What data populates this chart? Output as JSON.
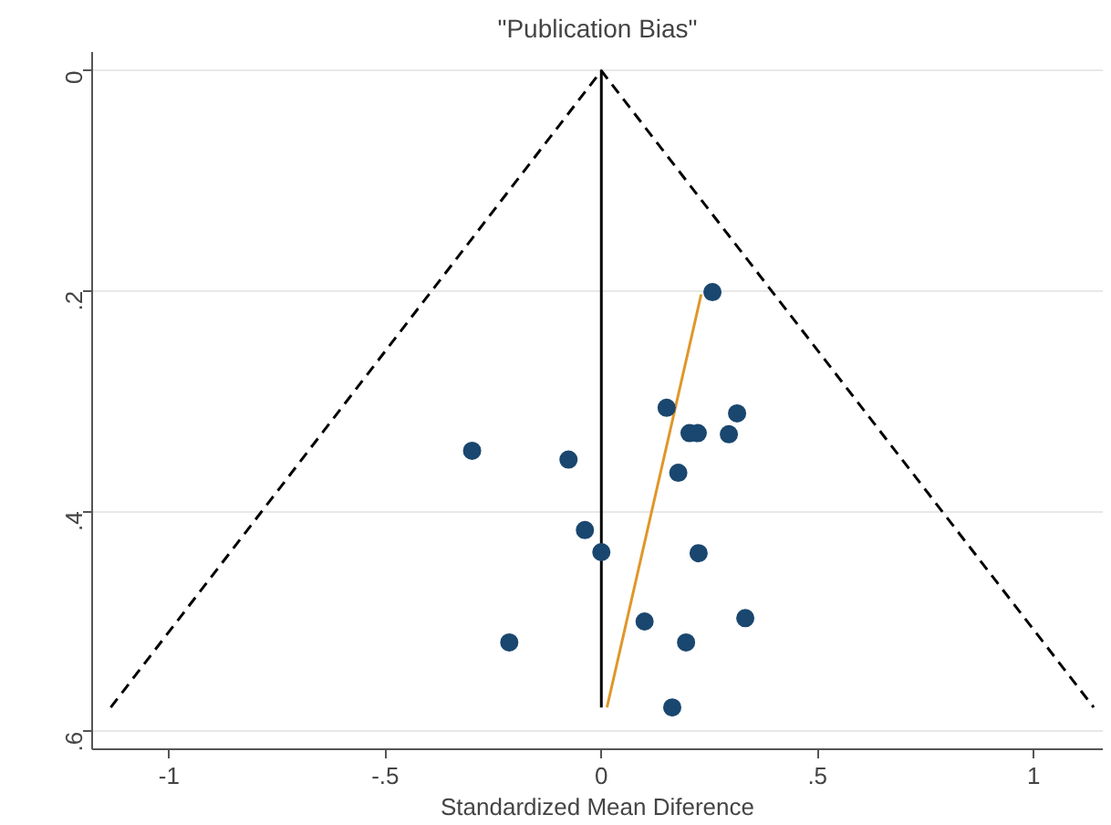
{
  "chart_data": {
    "type": "scatter",
    "title": "\"Publication Bias\"",
    "xlabel": "Standardized Mean Diference",
    "xlim": [
      -1.178,
      1.16
    ],
    "ylim": [
      0.616,
      -0.017
    ],
    "xticks": [
      {
        "value": -1,
        "label": "-1"
      },
      {
        "value": -0.5,
        "label": "-.5"
      },
      {
        "value": 0,
        "label": "0"
      },
      {
        "value": 0.5,
        "label": ".5"
      },
      {
        "value": 1,
        "label": "1"
      }
    ],
    "yticks": [
      {
        "value": 0,
        "label": "0"
      },
      {
        "value": 0.2,
        "label": ".2"
      },
      {
        "value": 0.4,
        "label": ".4"
      },
      {
        "value": 0.6,
        "label": ".6"
      }
    ],
    "grid": "y",
    "series": [
      {
        "type": "line",
        "color": "#000000",
        "line_style": "dashed",
        "x": [
          -1.135,
          0,
          1.139
        ],
        "values": [
          0.578,
          0,
          0.578
        ]
      },
      {
        "type": "line",
        "color": "#000000",
        "line_style": "solid",
        "x": [
          0,
          0
        ],
        "values": [
          0,
          0.578
        ]
      },
      {
        "type": "line",
        "color": "#e0962a",
        "line_style": "solid",
        "x": [
          0.013,
          0.231
        ],
        "values": [
          0.578,
          0.203
        ]
      },
      {
        "color": "#1a476f",
        "marker": "circle",
        "x": [
          0.257,
          0.151,
          0.314,
          0.204,
          0.223,
          0.295,
          -0.299,
          -0.076,
          0.178,
          -0.038,
          0,
          0.225,
          0.1,
          0.333,
          -0.213,
          0.196,
          0.164
        ],
        "values": [
          0.201,
          0.306,
          0.311,
          0.329,
          0.329,
          0.33,
          0.345,
          0.353,
          0.365,
          0.417,
          0.437,
          0.438,
          0.5,
          0.497,
          0.519,
          0.519,
          0.578
        ]
      }
    ]
  }
}
